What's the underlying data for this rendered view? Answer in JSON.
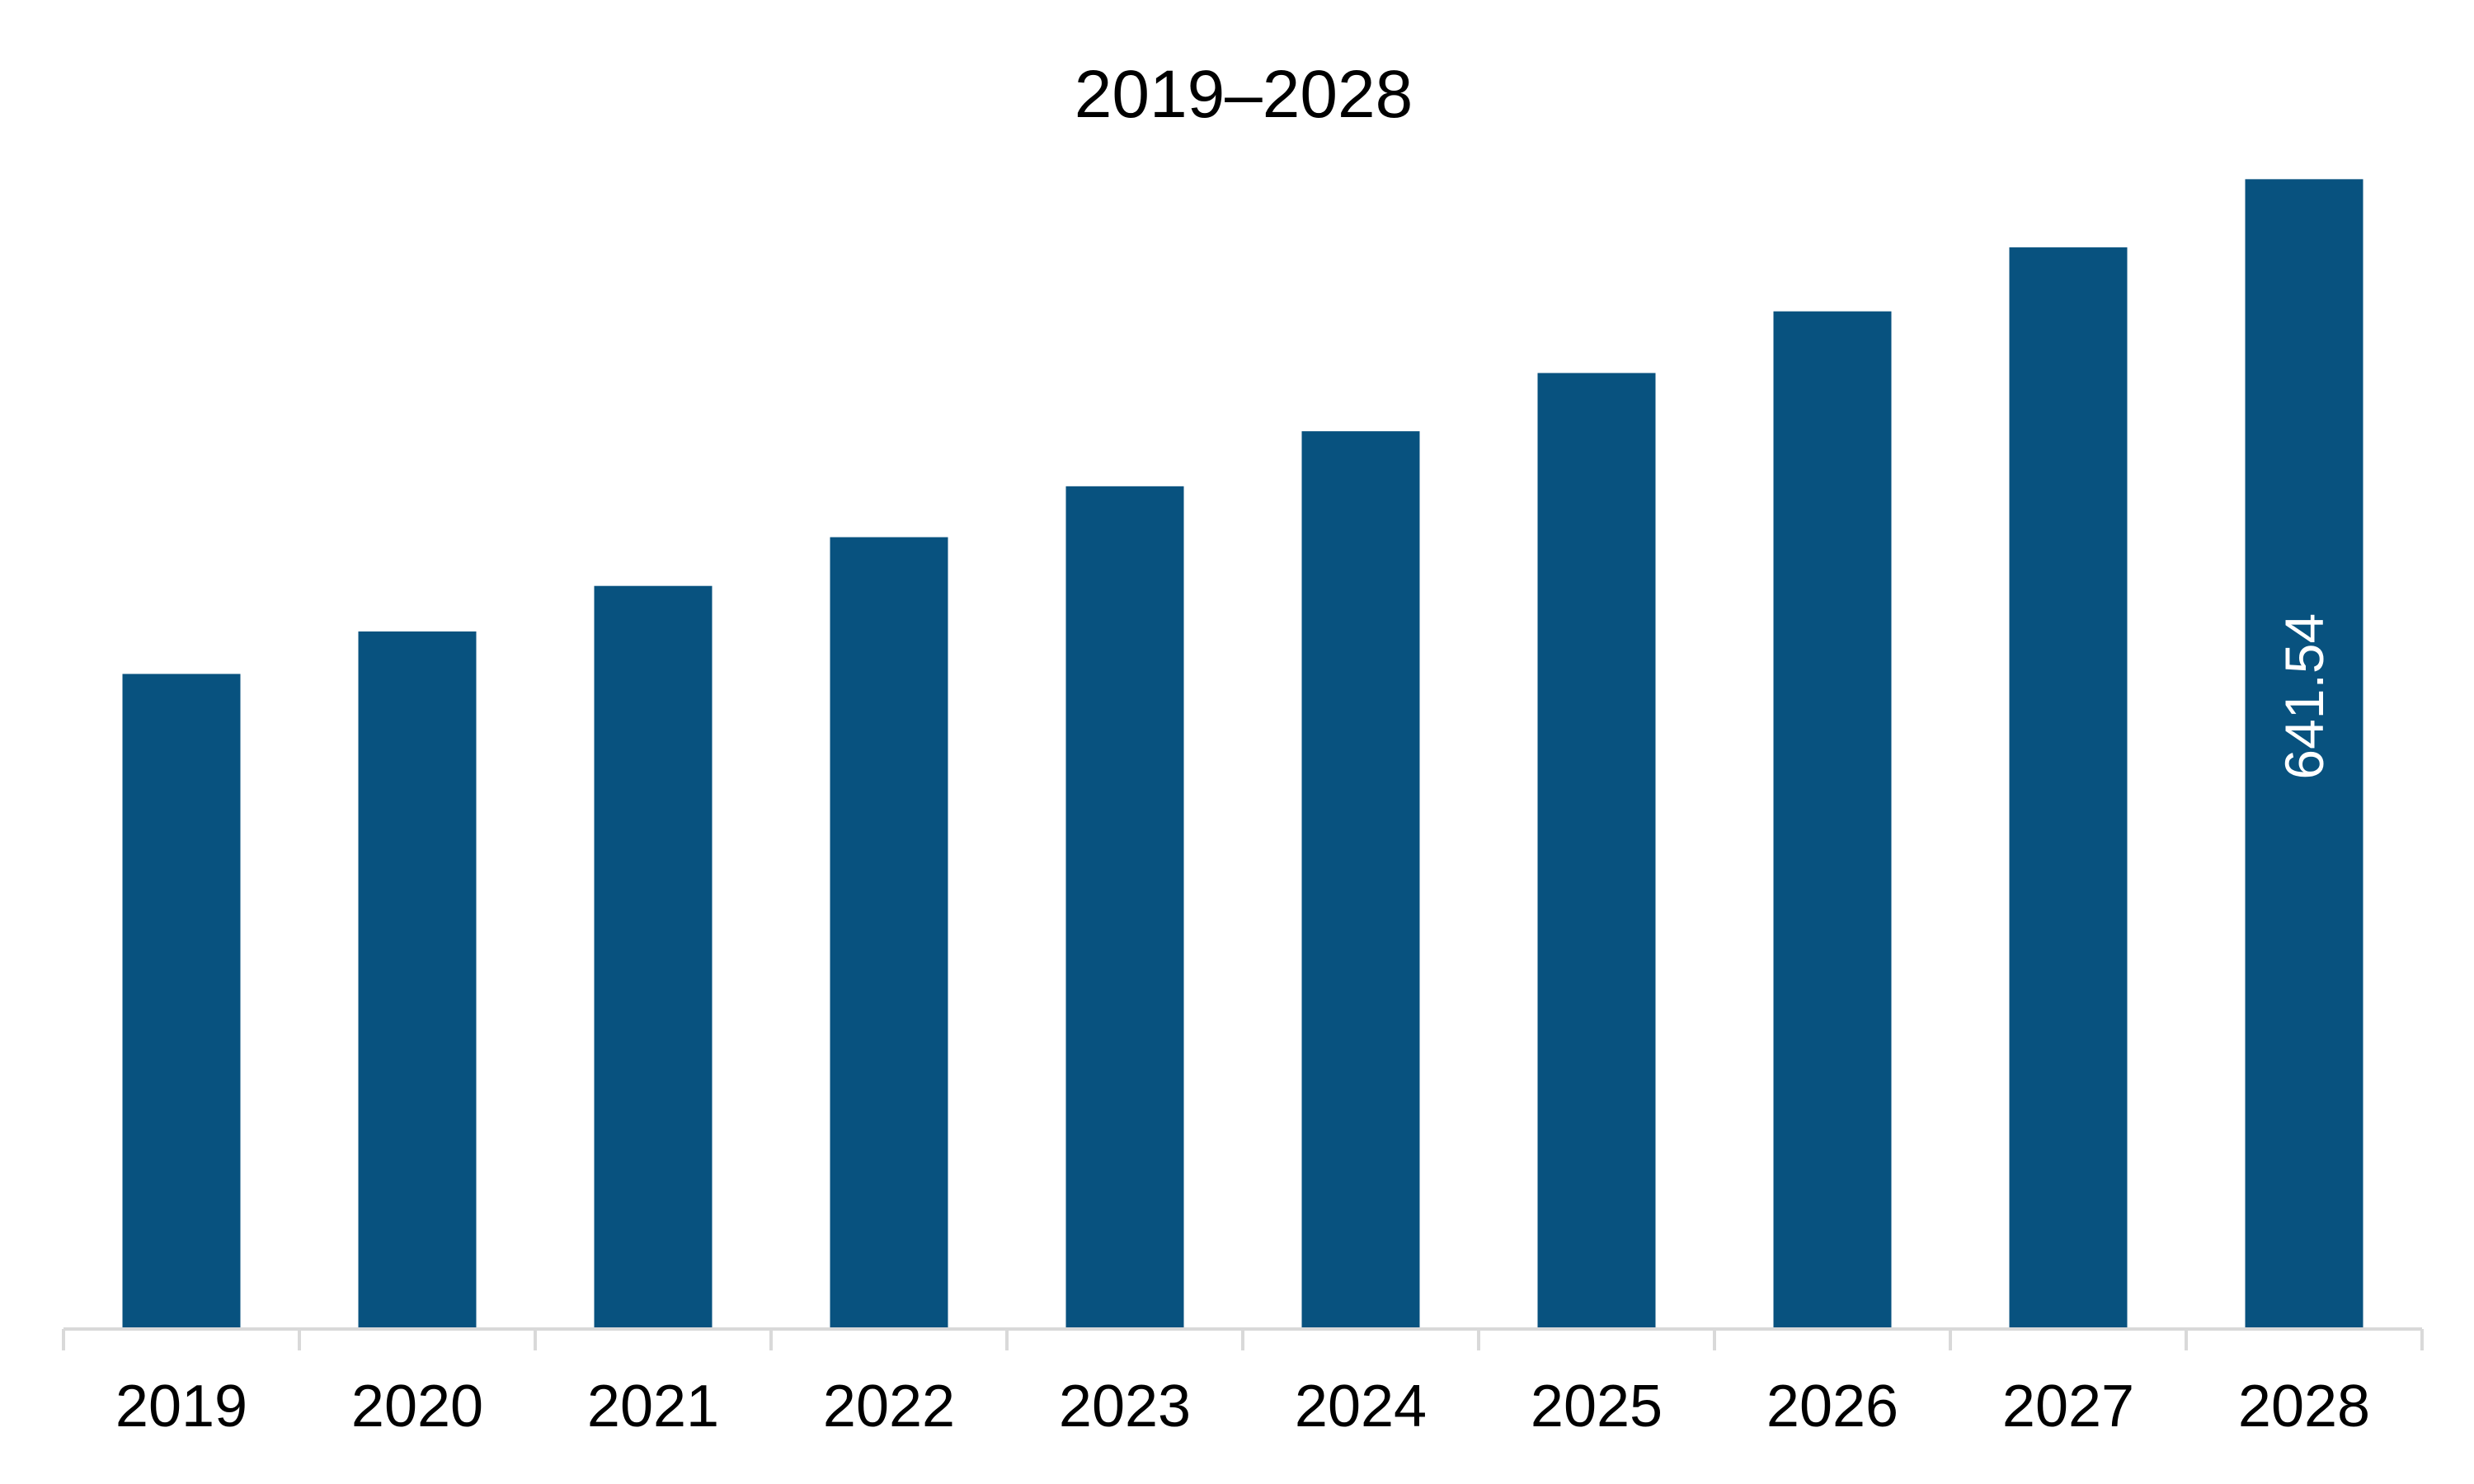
{
  "chart_data": {
    "type": "bar",
    "title": "2019–2028",
    "xlabel": "",
    "ylabel": "",
    "categories": [
      "2019",
      "2020",
      "2021",
      "2022",
      "2023",
      "2024",
      "2025",
      "2026",
      "2027",
      "2028"
    ],
    "values": [
      365.5,
      389.2,
      414.6,
      441.8,
      470.2,
      500.9,
      533.4,
      567.8,
      603.5,
      641.54
    ],
    "ylim": [
      0,
      690
    ],
    "data_labels": [
      "",
      "",
      "",
      "",
      "",
      "",
      "",
      "",
      "",
      "641.54"
    ],
    "grid": false,
    "legend": "none",
    "bar_color": "#08527F",
    "axis_color": "#D9D9D9"
  }
}
